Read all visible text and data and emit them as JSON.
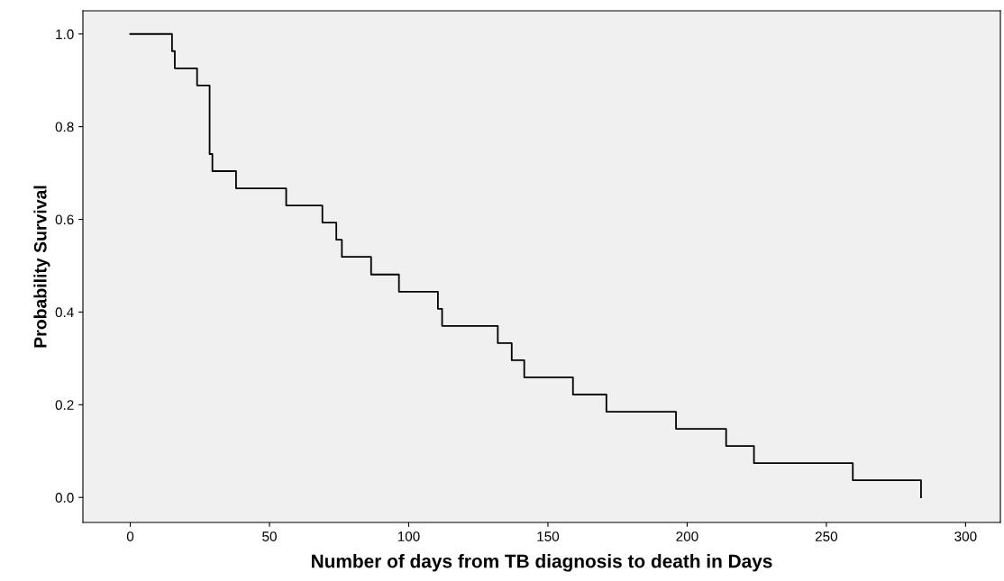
{
  "chart_data": {
    "type": "step",
    "xlabel": "Number of days from TB diagnosis to death in Days",
    "ylabel": "Probability Survival",
    "series": [
      {
        "color": "#000000",
        "x": [
          0,
          15,
          16,
          24,
          28.5,
          29.5,
          38,
          56,
          69,
          74,
          76,
          86.5,
          96.5,
          110.5,
          112,
          132,
          137,
          141.5,
          159,
          171,
          196,
          214,
          224,
          259.5,
          284
        ],
        "values": [
          1.0,
          0.963,
          0.926,
          0.889,
          0.741,
          0.704,
          0.667,
          0.63,
          0.593,
          0.556,
          0.519,
          0.481,
          0.444,
          0.407,
          0.37,
          0.333,
          0.296,
          0.259,
          0.222,
          0.185,
          0.148,
          0.111,
          0.074,
          0.037,
          0.0
        ]
      }
    ],
    "xlim": [
      -17,
      312.5
    ],
    "ylim": [
      -0.054,
      1.05
    ],
    "xticks": [
      0,
      50,
      100,
      150,
      200,
      250,
      300
    ],
    "yticks": [
      {
        "value": 0,
        "label": "0.0"
      },
      {
        "value": 0.2,
        "label": "0.2"
      },
      {
        "value": 0.4,
        "label": "0.4"
      },
      {
        "value": 0.6,
        "label": "0.6"
      },
      {
        "value": 0.8,
        "label": "0.8"
      },
      {
        "value": 1,
        "label": "1.0"
      }
    ],
    "grid": false,
    "legend": false,
    "line_style": "solid"
  }
}
